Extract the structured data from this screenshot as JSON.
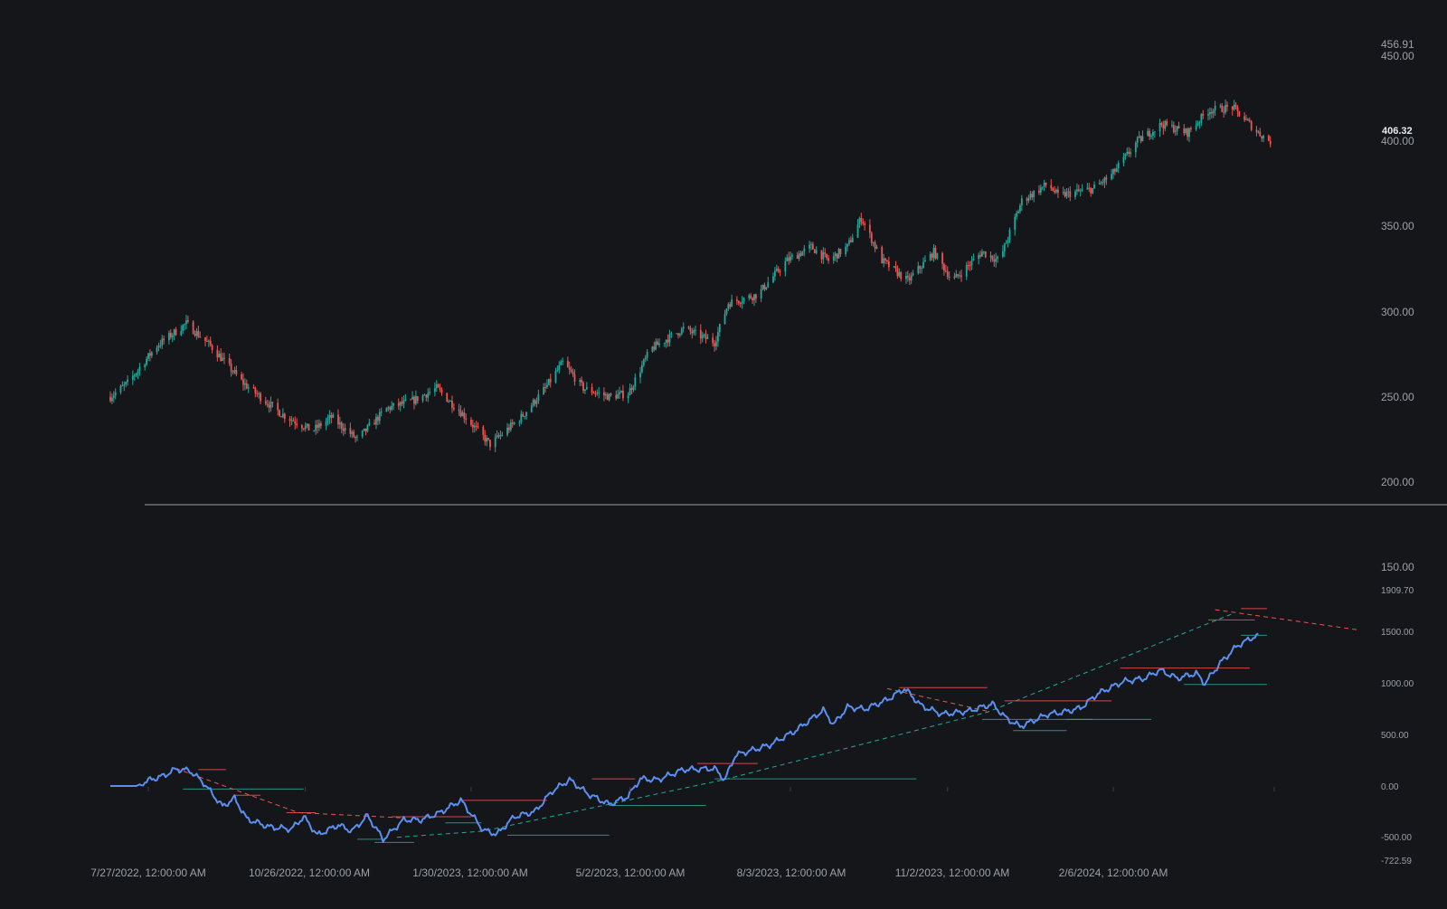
{
  "chart_data": [
    {
      "type": "candlestick",
      "title": "",
      "y_ticks": [
        "450.00",
        "400.00",
        "350.00",
        "300.00",
        "250.00",
        "200.00",
        "150.00"
      ],
      "y_max_label": "456.91",
      "last_price_label": "406.32",
      "ylim": [
        150,
        456.91
      ],
      "x_range": [
        "2022-07-05",
        "2024-05-07"
      ],
      "colors": {
        "up": "#26a69a",
        "down": "#ef5350",
        "background": "#15161a",
        "axis_text": "#9aa0a6"
      },
      "price_anchors": [
        [
          "2022-07-05",
          250
        ],
        [
          "2022-07-15",
          258
        ],
        [
          "2022-08-01",
          280
        ],
        [
          "2022-08-18",
          293
        ],
        [
          "2022-09-01",
          280
        ],
        [
          "2022-09-20",
          258
        ],
        [
          "2022-10-12",
          240
        ],
        [
          "2022-10-30",
          230
        ],
        [
          "2022-11-10",
          238
        ],
        [
          "2022-11-25",
          225
        ],
        [
          "2022-12-12",
          243
        ],
        [
          "2022-12-28",
          248
        ],
        [
          "2023-01-10",
          255
        ],
        [
          "2023-01-25",
          240
        ],
        [
          "2023-02-10",
          222
        ],
        [
          "2023-02-28",
          238
        ],
        [
          "2023-03-14",
          255
        ],
        [
          "2023-03-24",
          270
        ],
        [
          "2023-04-05",
          255
        ],
        [
          "2023-04-20",
          250
        ],
        [
          "2023-05-01",
          252
        ],
        [
          "2023-05-14",
          278
        ],
        [
          "2023-06-02",
          290
        ],
        [
          "2023-06-20",
          282
        ],
        [
          "2023-06-28",
          305
        ],
        [
          "2023-07-15",
          310
        ],
        [
          "2023-08-01",
          330
        ],
        [
          "2023-08-15",
          338
        ],
        [
          "2023-08-25",
          330
        ],
        [
          "2023-09-05",
          338
        ],
        [
          "2023-09-13",
          355
        ],
        [
          "2023-09-25",
          330
        ],
        [
          "2023-10-10",
          318
        ],
        [
          "2023-10-25",
          335
        ],
        [
          "2023-11-05",
          318
        ],
        [
          "2023-11-22",
          335
        ],
        [
          "2023-12-02",
          330
        ],
        [
          "2023-12-15",
          365
        ],
        [
          "2023-12-30",
          375
        ],
        [
          "2024-01-05",
          368
        ],
        [
          "2024-01-25",
          372
        ],
        [
          "2024-02-05",
          380
        ],
        [
          "2024-02-20",
          400
        ],
        [
          "2024-03-05",
          410
        ],
        [
          "2024-03-20",
          405
        ],
        [
          "2024-04-01",
          418
        ],
        [
          "2024-04-15",
          420
        ],
        [
          "2024-04-30",
          405
        ],
        [
          "2024-05-07",
          400
        ]
      ]
    },
    {
      "type": "line",
      "title": "",
      "y_ticks": [
        "1500.00",
        "1000.00",
        "500.00",
        "0.00",
        "-500.00"
      ],
      "y_max_label": "1909.70",
      "y_min_label": "-722.59",
      "ylim": [
        -722.59,
        1909.7
      ],
      "x_labels": [
        "7/27/2022, 12:00:00 AM",
        "10/26/2022, 12:00:00 AM",
        "1/30/2023, 12:00:00 AM",
        "5/2/2023, 12:00:00 AM",
        "8/3/2023, 12:00:00 AM",
        "11/2/2023, 12:00:00 AM",
        "2/6/2024, 12:00:00 AM"
      ],
      "x_label_dates": [
        "2022-07-27",
        "2022-10-26",
        "2023-01-30",
        "2023-05-02",
        "2023-08-03",
        "2023-11-02",
        "2024-02-06"
      ],
      "colors": {
        "line": "#5b8ff0",
        "resistance": "#ef5350",
        "support": "#26a69a"
      },
      "line_anchors": [
        [
          "2022-07-05",
          0
        ],
        [
          "2022-07-20",
          0
        ],
        [
          "2022-07-28",
          60
        ],
        [
          "2022-08-05",
          100
        ],
        [
          "2022-08-12",
          165
        ],
        [
          "2022-08-20",
          150
        ],
        [
          "2022-08-28",
          30
        ],
        [
          "2022-09-08",
          -200
        ],
        [
          "2022-09-15",
          -120
        ],
        [
          "2022-09-22",
          -320
        ],
        [
          "2022-10-05",
          -400
        ],
        [
          "2022-10-18",
          -420
        ],
        [
          "2022-10-25",
          -300
        ],
        [
          "2022-11-02",
          -480
        ],
        [
          "2022-11-14",
          -380
        ],
        [
          "2022-11-22",
          -440
        ],
        [
          "2022-12-01",
          -290
        ],
        [
          "2022-12-10",
          -520
        ],
        [
          "2022-12-22",
          -330
        ],
        [
          "2023-01-01",
          -330
        ],
        [
          "2023-01-12",
          -260
        ],
        [
          "2023-01-24",
          -140
        ],
        [
          "2023-02-06",
          -430
        ],
        [
          "2023-02-14",
          -470
        ],
        [
          "2023-02-24",
          -300
        ],
        [
          "2023-03-08",
          -250
        ],
        [
          "2023-03-18",
          -50
        ],
        [
          "2023-03-28",
          60
        ],
        [
          "2023-04-08",
          -80
        ],
        [
          "2023-04-20",
          -180
        ],
        [
          "2023-05-01",
          -100
        ],
        [
          "2023-05-08",
          70
        ],
        [
          "2023-05-18",
          60
        ],
        [
          "2023-06-02",
          160
        ],
        [
          "2023-06-20",
          170
        ],
        [
          "2023-06-26",
          60
        ],
        [
          "2023-07-02",
          300
        ],
        [
          "2023-07-22",
          400
        ],
        [
          "2023-08-06",
          540
        ],
        [
          "2023-08-22",
          740
        ],
        [
          "2023-08-28",
          600
        ],
        [
          "2023-09-05",
          770
        ],
        [
          "2023-09-15",
          750
        ],
        [
          "2023-09-28",
          840
        ],
        [
          "2023-10-08",
          950
        ],
        [
          "2023-10-18",
          780
        ],
        [
          "2023-10-30",
          700
        ],
        [
          "2023-11-14",
          730
        ],
        [
          "2023-11-28",
          800
        ],
        [
          "2023-12-06",
          660
        ],
        [
          "2023-12-14",
          580
        ],
        [
          "2023-12-30",
          700
        ],
        [
          "2024-01-08",
          720
        ],
        [
          "2024-01-18",
          760
        ],
        [
          "2024-01-28",
          900
        ],
        [
          "2024-02-12",
          1020
        ],
        [
          "2024-02-24",
          1050
        ],
        [
          "2024-03-04",
          1130
        ],
        [
          "2024-03-14",
          1050
        ],
        [
          "2024-03-25",
          1100
        ],
        [
          "2024-03-30",
          1000
        ],
        [
          "2024-04-08",
          1200
        ],
        [
          "2024-04-18",
          1370
        ],
        [
          "2024-04-28",
          1460
        ],
        [
          "2024-04-30",
          1460
        ]
      ],
      "trend_lines": [
        {
          "kind": "resistance",
          "points": [
            [
              "2022-08-12",
              170
            ],
            [
              "2022-10-22",
              -260
            ],
            [
              "2022-12-20",
              -310
            ]
          ]
        },
        {
          "kind": "support",
          "points": [
            [
              "2022-12-18",
              -500
            ],
            [
              "2023-02-06",
              -440
            ],
            [
              "2023-06-25",
              60
            ],
            [
              "2023-11-25",
              720
            ],
            [
              "2024-04-15",
              1680
            ]
          ]
        },
        {
          "kind": "resistance",
          "points": [
            [
              "2023-09-28",
              950
            ],
            [
              "2023-11-25",
              730
            ]
          ]
        },
        {
          "kind": "resistance",
          "points": [
            [
              "2024-04-05",
              1720
            ],
            [
              "2024-06-28",
              1520
            ]
          ]
        }
      ],
      "levels": [
        {
          "kind": "resistance",
          "from": "2022-08-25",
          "to": "2022-09-10",
          "value": 160
        },
        {
          "kind": "support",
          "from": "2022-08-16",
          "to": "2022-10-25",
          "value": -30
        },
        {
          "kind": "resistance",
          "from": "2022-09-15",
          "to": "2022-09-30",
          "value": -90
        },
        {
          "kind": "resistance",
          "from": "2022-10-15",
          "to": "2022-11-01",
          "value": -260
        },
        {
          "kind": "support",
          "from": "2022-11-25",
          "to": "2022-12-10",
          "value": -520
        },
        {
          "kind": "support",
          "from": "2022-12-05",
          "to": "2022-12-28",
          "value": -550
        },
        {
          "kind": "resistance",
          "from": "2022-12-15",
          "to": "2023-01-30",
          "value": -300
        },
        {
          "kind": "support",
          "from": "2023-01-15",
          "to": "2023-02-05",
          "value": -360
        },
        {
          "kind": "resistance",
          "from": "2023-01-25",
          "to": "2023-03-15",
          "value": -140
        },
        {
          "kind": "support",
          "from": "2023-02-20",
          "to": "2023-04-20",
          "value": -480
        },
        {
          "kind": "resistance",
          "from": "2023-04-10",
          "to": "2023-05-05",
          "value": 70
        },
        {
          "kind": "support",
          "from": "2023-04-20",
          "to": "2023-06-15",
          "value": -190
        },
        {
          "kind": "resistance",
          "from": "2023-06-10",
          "to": "2023-07-15",
          "value": 220
        },
        {
          "kind": "support",
          "from": "2023-06-20",
          "to": "2023-10-15",
          "value": 70
        },
        {
          "kind": "resistance",
          "from": "2023-10-05",
          "to": "2023-11-25",
          "value": 960
        },
        {
          "kind": "resistance",
          "from": "2023-12-05",
          "to": "2024-02-05",
          "value": 830
        },
        {
          "kind": "support",
          "from": "2023-11-22",
          "to": "2024-01-25",
          "value": 650
        },
        {
          "kind": "support",
          "from": "2023-12-10",
          "to": "2024-01-10",
          "value": 540
        },
        {
          "kind": "support",
          "from": "2024-01-10",
          "to": "2024-02-28",
          "value": 650
        },
        {
          "kind": "resistance",
          "from": "2024-02-10",
          "to": "2024-04-25",
          "value": 1150
        },
        {
          "kind": "support",
          "from": "2024-03-18",
          "to": "2024-05-05",
          "value": 990
        },
        {
          "kind": "resistance",
          "from": "2024-04-01",
          "to": "2024-04-28",
          "value": 1620
        },
        {
          "kind": "support",
          "from": "2024-04-20",
          "to": "2024-05-05",
          "value": 1470
        },
        {
          "kind": "resistance",
          "from": "2024-04-20",
          "to": "2024-05-05",
          "value": 1730
        }
      ]
    }
  ]
}
